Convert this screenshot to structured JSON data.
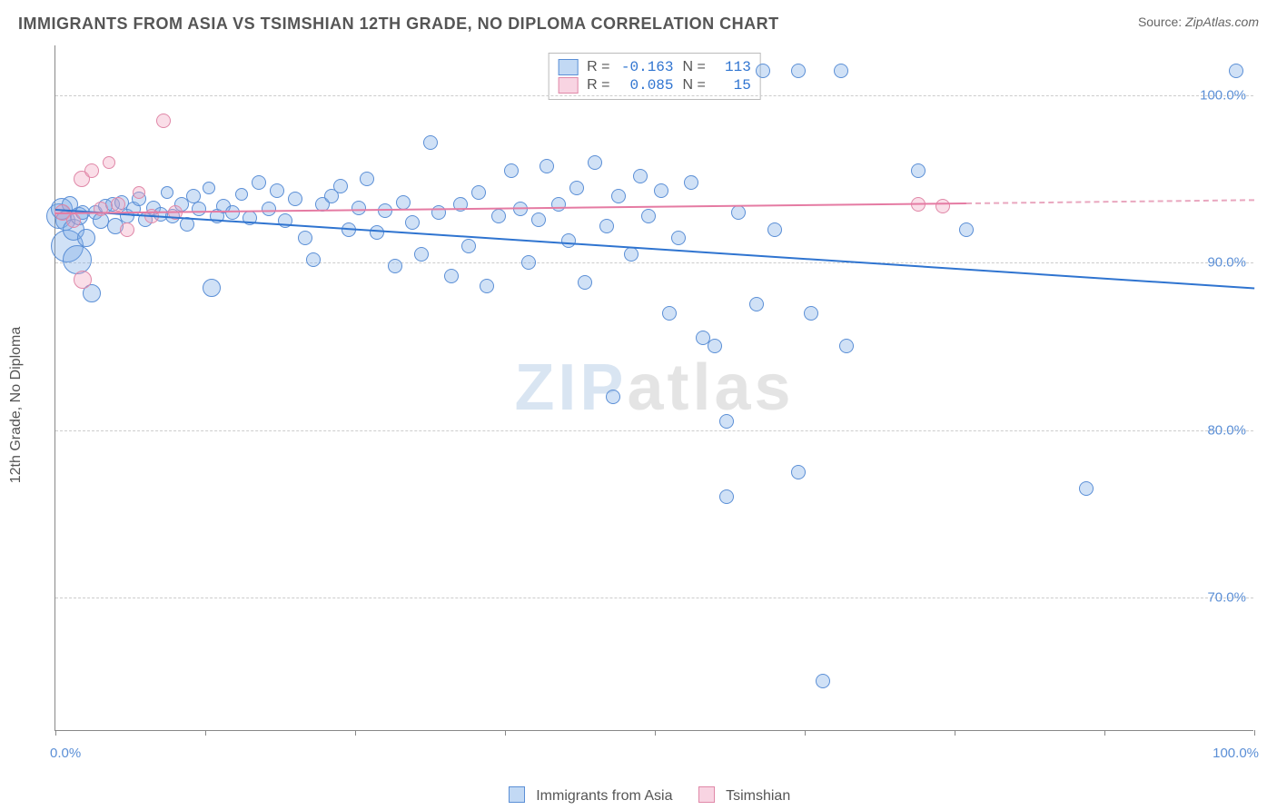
{
  "title": "IMMIGRANTS FROM ASIA VS TSIMSHIAN 12TH GRADE, NO DIPLOMA CORRELATION CHART",
  "source_label": "Source:",
  "source_value": "ZipAtlas.com",
  "ylabel": "12th Grade, No Diploma",
  "watermark": {
    "part1": "ZIP",
    "part2": "atlas"
  },
  "chart": {
    "type": "scatter",
    "background_color": "#ffffff",
    "grid_color": "#cccccc",
    "axis_color": "#888888",
    "xlim": [
      0,
      100
    ],
    "ylim": [
      62,
      103
    ],
    "xtick_positions": [
      0,
      12.5,
      25,
      37.5,
      50,
      62.5,
      75,
      87.5,
      100
    ],
    "xtick_labels": {
      "0": "0.0%",
      "100": "100.0%"
    },
    "ytick_positions": [
      70,
      80,
      90,
      100
    ],
    "ytick_labels": [
      "70.0%",
      "80.0%",
      "90.0%",
      "100.0%"
    ],
    "label_fontsize": 15,
    "label_color": "#5b8fd6",
    "title_fontsize": 18,
    "title_color": "#555555"
  },
  "series": {
    "asia": {
      "label": "Immigrants from Asia",
      "fill": "rgba(120,170,230,0.35)",
      "stroke": "#5b8fd6",
      "line_color": "#2f74d0",
      "R": "-0.163",
      "N": "113",
      "trend": {
        "x1": 0,
        "y1": 93.2,
        "x2": 100,
        "y2": 88.5
      },
      "points": [
        {
          "x": 0.3,
          "y": 92.8,
          "r": 14
        },
        {
          "x": 0.5,
          "y": 93.2,
          "r": 12
        },
        {
          "x": 0.8,
          "y": 92.5,
          "r": 11
        },
        {
          "x": 1.0,
          "y": 91.0,
          "r": 18
        },
        {
          "x": 1.2,
          "y": 93.5,
          "r": 9
        },
        {
          "x": 1.5,
          "y": 92.0,
          "r": 12
        },
        {
          "x": 1.8,
          "y": 90.2,
          "r": 16
        },
        {
          "x": 2.0,
          "y": 92.8,
          "r": 10
        },
        {
          "x": 2.3,
          "y": 93.0,
          "r": 8
        },
        {
          "x": 2.6,
          "y": 91.5,
          "r": 10
        },
        {
          "x": 3.0,
          "y": 88.2,
          "r": 10
        },
        {
          "x": 3.3,
          "y": 93.0,
          "r": 8
        },
        {
          "x": 3.8,
          "y": 92.5,
          "r": 9
        },
        {
          "x": 4.2,
          "y": 93.4,
          "r": 8
        },
        {
          "x": 4.8,
          "y": 93.5,
          "r": 8
        },
        {
          "x": 5.0,
          "y": 92.2,
          "r": 9
        },
        {
          "x": 5.5,
          "y": 93.6,
          "r": 8
        },
        {
          "x": 6.0,
          "y": 92.8,
          "r": 8
        },
        {
          "x": 6.5,
          "y": 93.2,
          "r": 8
        },
        {
          "x": 7.0,
          "y": 93.8,
          "r": 8
        },
        {
          "x": 7.5,
          "y": 92.6,
          "r": 8
        },
        {
          "x": 8.2,
          "y": 93.3,
          "r": 8
        },
        {
          "x": 8.8,
          "y": 92.9,
          "r": 8
        },
        {
          "x": 9.3,
          "y": 94.2,
          "r": 7
        },
        {
          "x": 9.8,
          "y": 92.8,
          "r": 8
        },
        {
          "x": 10.5,
          "y": 93.5,
          "r": 8
        },
        {
          "x": 11.0,
          "y": 92.3,
          "r": 8
        },
        {
          "x": 11.5,
          "y": 94.0,
          "r": 8
        },
        {
          "x": 12.0,
          "y": 93.2,
          "r": 8
        },
        {
          "x": 12.8,
          "y": 94.5,
          "r": 7
        },
        {
          "x": 13.0,
          "y": 88.5,
          "r": 10
        },
        {
          "x": 13.5,
          "y": 92.8,
          "r": 8
        },
        {
          "x": 14.0,
          "y": 93.4,
          "r": 8
        },
        {
          "x": 14.8,
          "y": 93.0,
          "r": 8
        },
        {
          "x": 15.5,
          "y": 94.1,
          "r": 7
        },
        {
          "x": 16.2,
          "y": 92.7,
          "r": 8
        },
        {
          "x": 17.0,
          "y": 94.8,
          "r": 8
        },
        {
          "x": 17.8,
          "y": 93.2,
          "r": 8
        },
        {
          "x": 18.5,
          "y": 94.3,
          "r": 8
        },
        {
          "x": 19.2,
          "y": 92.5,
          "r": 8
        },
        {
          "x": 20.0,
          "y": 93.8,
          "r": 8
        },
        {
          "x": 20.8,
          "y": 91.5,
          "r": 8
        },
        {
          "x": 21.5,
          "y": 90.2,
          "r": 8
        },
        {
          "x": 22.3,
          "y": 93.5,
          "r": 8
        },
        {
          "x": 23.0,
          "y": 94.0,
          "r": 8
        },
        {
          "x": 23.8,
          "y": 94.6,
          "r": 8
        },
        {
          "x": 24.5,
          "y": 92.0,
          "r": 8
        },
        {
          "x": 25.3,
          "y": 93.3,
          "r": 8
        },
        {
          "x": 26.0,
          "y": 95.0,
          "r": 8
        },
        {
          "x": 26.8,
          "y": 91.8,
          "r": 8
        },
        {
          "x": 27.5,
          "y": 93.1,
          "r": 8
        },
        {
          "x": 28.3,
          "y": 89.8,
          "r": 8
        },
        {
          "x": 29.0,
          "y": 93.6,
          "r": 8
        },
        {
          "x": 29.8,
          "y": 92.4,
          "r": 8
        },
        {
          "x": 30.5,
          "y": 90.5,
          "r": 8
        },
        {
          "x": 31.3,
          "y": 97.2,
          "r": 8
        },
        {
          "x": 32.0,
          "y": 93.0,
          "r": 8
        },
        {
          "x": 33.0,
          "y": 89.2,
          "r": 8
        },
        {
          "x": 33.8,
          "y": 93.5,
          "r": 8
        },
        {
          "x": 34.5,
          "y": 91.0,
          "r": 8
        },
        {
          "x": 35.3,
          "y": 94.2,
          "r": 8
        },
        {
          "x": 36.0,
          "y": 88.6,
          "r": 8
        },
        {
          "x": 37.0,
          "y": 92.8,
          "r": 8
        },
        {
          "x": 38.0,
          "y": 95.5,
          "r": 8
        },
        {
          "x": 38.8,
          "y": 93.2,
          "r": 8
        },
        {
          "x": 39.5,
          "y": 90.0,
          "r": 8
        },
        {
          "x": 40.3,
          "y": 92.6,
          "r": 8
        },
        {
          "x": 41.0,
          "y": 95.8,
          "r": 8
        },
        {
          "x": 42.0,
          "y": 93.5,
          "r": 8
        },
        {
          "x": 42.8,
          "y": 91.3,
          "r": 8
        },
        {
          "x": 43.5,
          "y": 94.5,
          "r": 8
        },
        {
          "x": 44.2,
          "y": 88.8,
          "r": 8
        },
        {
          "x": 45.0,
          "y": 96.0,
          "r": 8
        },
        {
          "x": 46.0,
          "y": 92.2,
          "r": 8
        },
        {
          "x": 46.5,
          "y": 82.0,
          "r": 8
        },
        {
          "x": 47.0,
          "y": 94.0,
          "r": 8
        },
        {
          "x": 48.0,
          "y": 90.5,
          "r": 8
        },
        {
          "x": 48.8,
          "y": 95.2,
          "r": 8
        },
        {
          "x": 49.5,
          "y": 92.8,
          "r": 8
        },
        {
          "x": 50.5,
          "y": 94.3,
          "r": 8
        },
        {
          "x": 51.2,
          "y": 87.0,
          "r": 8
        },
        {
          "x": 52.0,
          "y": 91.5,
          "r": 8
        },
        {
          "x": 53.0,
          "y": 94.8,
          "r": 8
        },
        {
          "x": 54.0,
          "y": 85.5,
          "r": 8
        },
        {
          "x": 55.0,
          "y": 85.0,
          "r": 8
        },
        {
          "x": 56.0,
          "y": 80.5,
          "r": 8
        },
        {
          "x": 56.0,
          "y": 76.0,
          "r": 8
        },
        {
          "x": 57.0,
          "y": 93.0,
          "r": 8
        },
        {
          "x": 58.5,
          "y": 87.5,
          "r": 8
        },
        {
          "x": 59.0,
          "y": 101.5,
          "r": 8
        },
        {
          "x": 60.0,
          "y": 92.0,
          "r": 8
        },
        {
          "x": 62.0,
          "y": 77.5,
          "r": 8
        },
        {
          "x": 62.0,
          "y": 101.5,
          "r": 8
        },
        {
          "x": 63.0,
          "y": 87.0,
          "r": 8
        },
        {
          "x": 64.0,
          "y": 65.0,
          "r": 8
        },
        {
          "x": 65.5,
          "y": 101.5,
          "r": 8
        },
        {
          "x": 66.0,
          "y": 85.0,
          "r": 8
        },
        {
          "x": 72.0,
          "y": 95.5,
          "r": 8
        },
        {
          "x": 76.0,
          "y": 92.0,
          "r": 8
        },
        {
          "x": 86.0,
          "y": 76.5,
          "r": 8
        },
        {
          "x": 98.5,
          "y": 101.5,
          "r": 8
        }
      ]
    },
    "tsimshian": {
      "label": "Tsimshian",
      "fill": "rgba(240,160,190,0.35)",
      "stroke": "#e088a8",
      "line_color": "#e57ba3",
      "R": "0.085",
      "N": "15",
      "trend": {
        "x1": 0,
        "y1": 93.0,
        "x2": 76,
        "y2": 93.6
      },
      "trend_dashed": {
        "x1": 76,
        "y1": 93.6,
        "x2": 100,
        "y2": 93.8
      },
      "points": [
        {
          "x": 0.6,
          "y": 93.0,
          "r": 9
        },
        {
          "x": 1.5,
          "y": 92.5,
          "r": 8
        },
        {
          "x": 2.2,
          "y": 95.0,
          "r": 9
        },
        {
          "x": 2.3,
          "y": 89.0,
          "r": 10
        },
        {
          "x": 3.0,
          "y": 95.5,
          "r": 8
        },
        {
          "x": 3.8,
          "y": 93.2,
          "r": 8
        },
        {
          "x": 4.5,
          "y": 96.0,
          "r": 7
        },
        {
          "x": 5.2,
          "y": 93.5,
          "r": 8
        },
        {
          "x": 6.0,
          "y": 92.0,
          "r": 8
        },
        {
          "x": 7.0,
          "y": 94.2,
          "r": 7
        },
        {
          "x": 8.0,
          "y": 92.8,
          "r": 8
        },
        {
          "x": 9.0,
          "y": 98.5,
          "r": 8
        },
        {
          "x": 10.0,
          "y": 93.0,
          "r": 8
        },
        {
          "x": 72.0,
          "y": 93.5,
          "r": 8
        },
        {
          "x": 74.0,
          "y": 93.4,
          "r": 8
        }
      ]
    }
  },
  "legend": {
    "asia_swatch_fill": "rgba(120,170,230,0.45)",
    "asia_swatch_stroke": "#5b8fd6",
    "tsimshian_swatch_fill": "rgba(240,160,190,0.45)",
    "tsimshian_swatch_stroke": "#e088a8"
  },
  "stats_labels": {
    "R": "R =",
    "N": "N ="
  }
}
